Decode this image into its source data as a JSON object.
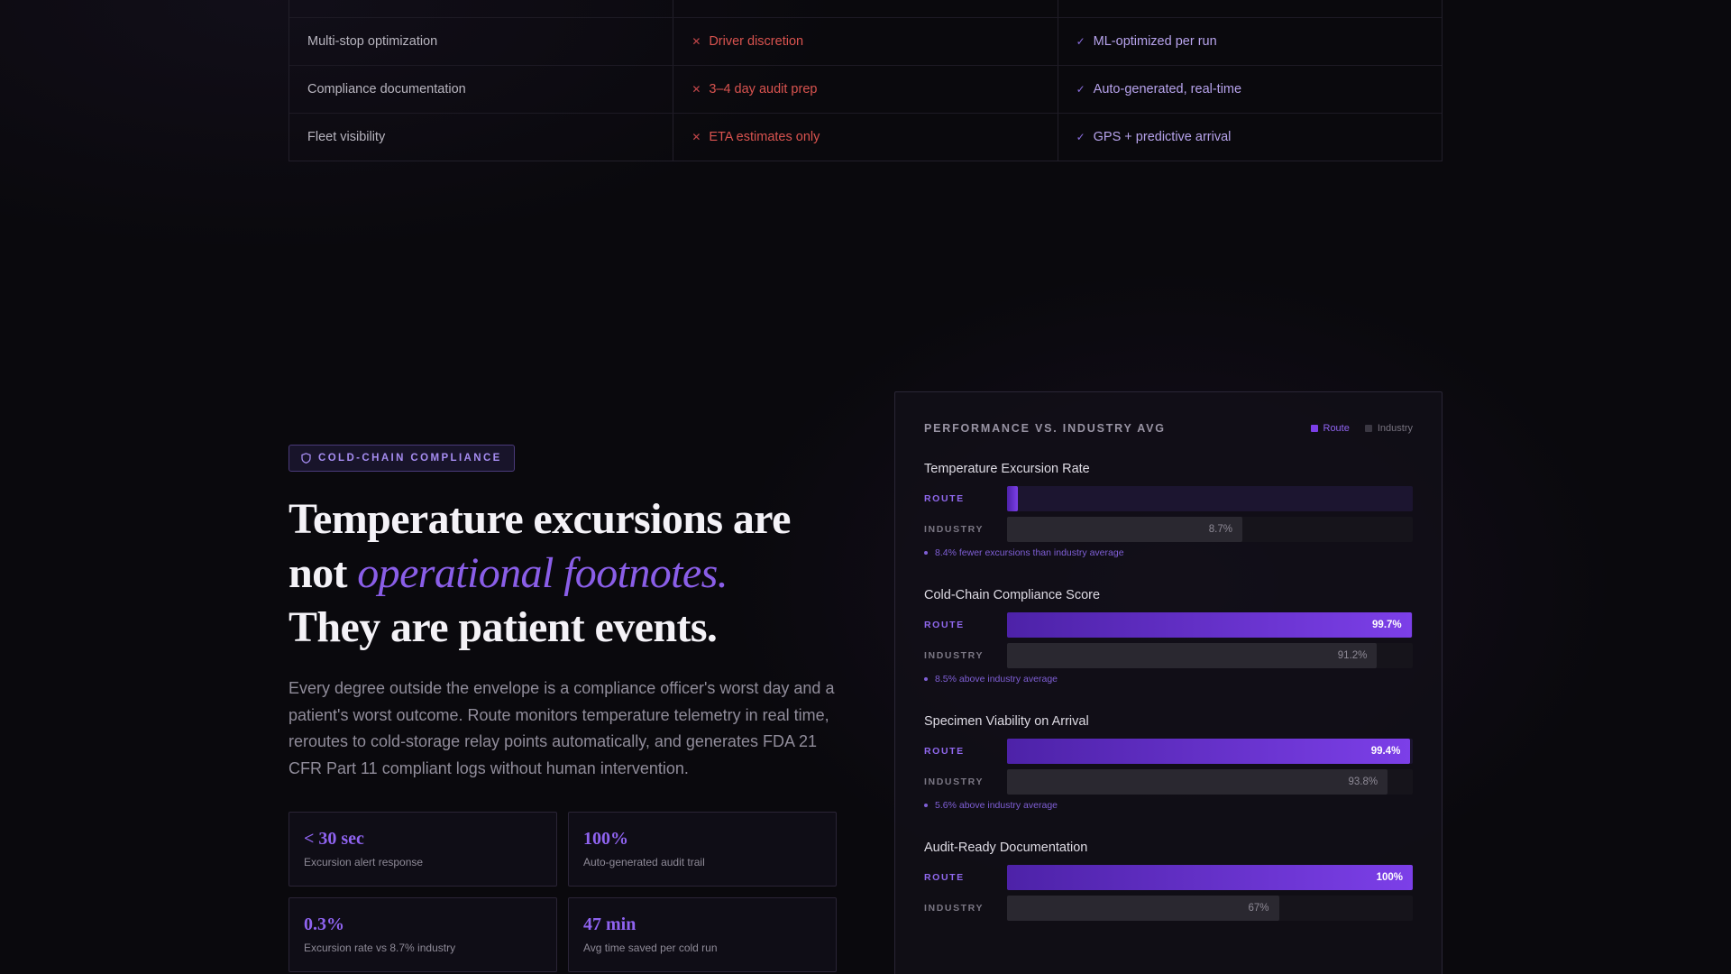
{
  "comparison": {
    "rows": [
      {
        "feature": "",
        "legacy": "",
        "route": ""
      },
      {
        "feature": "Multi-stop optimization",
        "legacy": "Driver discretion",
        "route": "ML-optimized per run"
      },
      {
        "feature": "Compliance documentation",
        "legacy": "3–4 day audit prep",
        "route": "Auto-generated, real-time"
      },
      {
        "feature": "Fleet visibility",
        "legacy": "ETA estimates only",
        "route": "GPS + predictive arrival"
      }
    ],
    "legacy_icon": "x-icon",
    "route_icon": "check-icon"
  },
  "section": {
    "badge": "COLD-CHAIN COMPLIANCE",
    "badge_icon": "shield-icon",
    "headline_1": "Temperature excursions are",
    "headline_2_prefix": "not ",
    "headline_2_emph": "operational footnotes.",
    "headline_3": "They are patient events.",
    "lede": "Every degree outside the envelope is a compliance officer's worst day and a patient's worst outcome. Route monitors temperature telemetry in real time, reroutes to cold-storage relay points automatically, and generates FDA 21 CFR Part 11 compliant logs without human intervention.",
    "stats": [
      {
        "value": "< 30 sec",
        "label": "Excursion alert response"
      },
      {
        "value": "100%",
        "label": "Auto-generated audit trail"
      },
      {
        "value": "0.3%",
        "label": "Excursion rate vs 8.7% industry"
      },
      {
        "value": "47 min",
        "label": "Avg time saved per cold run"
      }
    ]
  },
  "panel": {
    "title": "PERFORMANCE VS. INDUSTRY AVG",
    "legend_route": "Route",
    "legend_industry": "Industry",
    "route_label": "ROUTE",
    "industry_label": "INDUSTRY",
    "colors": {
      "route": "#7c3fe8",
      "industry": "#3a3742"
    }
  },
  "chart_data": {
    "type": "bar",
    "title": "PERFORMANCE VS. INDUSTRY AVG",
    "series_names": [
      "Route",
      "Industry"
    ],
    "metrics": [
      {
        "name": "Temperature Excursion Rate",
        "route": 0.3,
        "route_text": "",
        "industry": 8.7,
        "industry_text": "8.7%",
        "note": "8.4% fewer excursions than industry average",
        "scale_max": 15
      },
      {
        "name": "Cold-Chain Compliance Score",
        "route": 99.7,
        "route_text": "99.7%",
        "industry": 91.2,
        "industry_text": "91.2%",
        "note": "8.5% above industry average",
        "scale_max": 100
      },
      {
        "name": "Specimen Viability on Arrival",
        "route": 99.4,
        "route_text": "99.4%",
        "industry": 93.8,
        "industry_text": "93.8%",
        "note": "5.6% above industry average",
        "scale_max": 100
      },
      {
        "name": "Audit-Ready Documentation",
        "route": 100,
        "route_text": "100%",
        "industry": 67,
        "industry_text": "67%",
        "note": "",
        "scale_max": 100
      }
    ]
  }
}
